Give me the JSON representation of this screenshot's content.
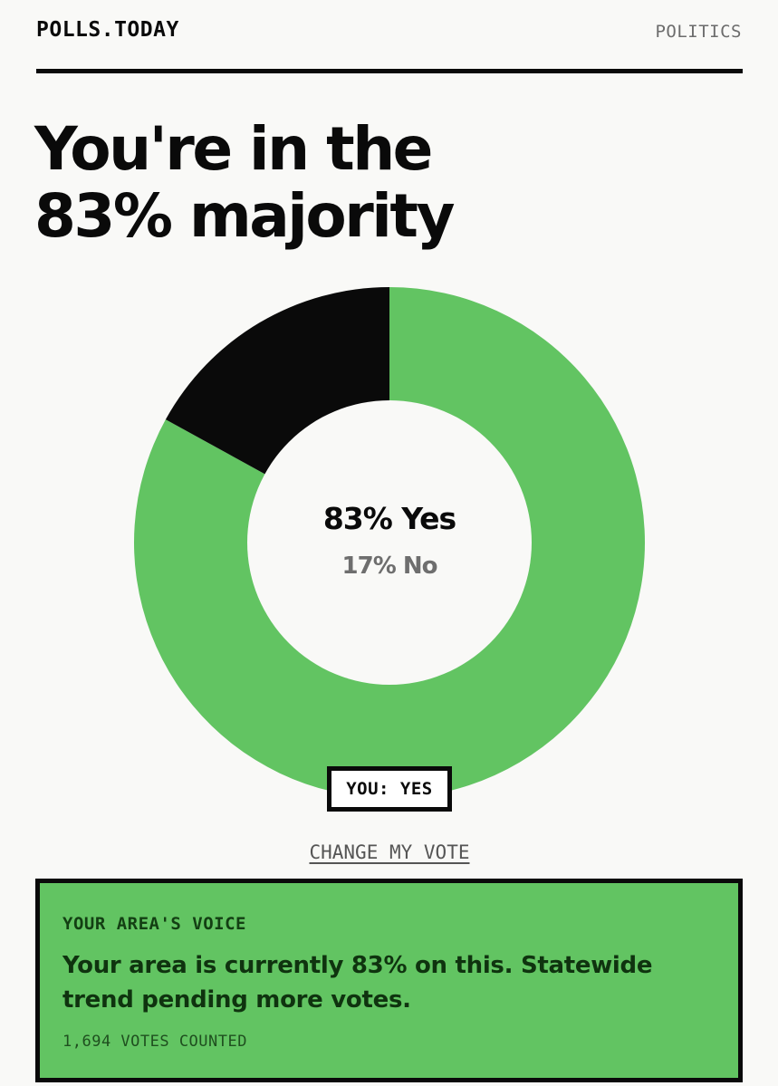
{
  "header": {
    "brand": "POLLS.TODAY",
    "section": "POLITICS"
  },
  "headline": {
    "line1": "You're in the",
    "line2": "83% majority"
  },
  "chart_data": {
    "type": "pie",
    "categories": [
      "Yes",
      "No"
    ],
    "values": [
      83,
      17
    ],
    "colors": [
      "#62c462",
      "#0a0a0a"
    ],
    "center_primary": "83% Yes",
    "center_secondary": "17% No"
  },
  "your_vote": {
    "label": "YOU: YES"
  },
  "actions": {
    "change_vote": "CHANGE MY VOTE"
  },
  "area_card": {
    "eyebrow": "YOUR AREA'S VOICE",
    "message": "Your area is currently 83% on this. Statewide trend pending more votes.",
    "count": "1,694 VOTES COUNTED"
  },
  "colors": {
    "accent_green": "#62c462",
    "ink": "#0a0a0a",
    "background": "#f9f9f7"
  }
}
